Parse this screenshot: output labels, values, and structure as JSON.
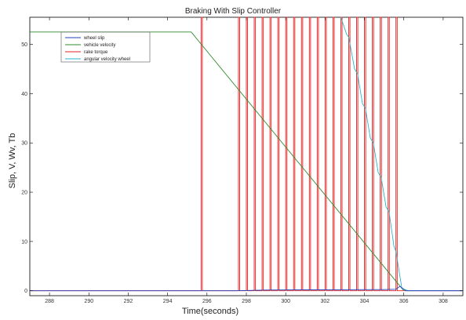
{
  "chart_data": {
    "type": "line",
    "title": "Braking With Slip Controller",
    "xlabel": "Time(seconds)",
    "ylabel": "Slip, V, Wv, Tb",
    "xlim": [
      287,
      309
    ],
    "ylim": [
      -1,
      55.5
    ],
    "xticks": [
      288,
      290,
      292,
      294,
      296,
      298,
      300,
      302,
      304,
      306,
      308
    ],
    "yticks": [
      0,
      10,
      20,
      30,
      40,
      50
    ],
    "grid": false,
    "legend_position": "top-left",
    "series": [
      {
        "name": "wheel slip",
        "color": "#1f3fbf",
        "x": [
          287,
          297.5,
          299,
          302,
          305,
          305.6,
          305.8,
          306.1,
          309
        ],
        "y": [
          0,
          0,
          0.15,
          0.2,
          0.25,
          0.3,
          0.9,
          0,
          0
        ]
      },
      {
        "name": "vehicle velocity",
        "color": "#2e8b2e",
        "x": [
          287,
          295.2,
          306
        ],
        "y": [
          52.5,
          52.5,
          0
        ]
      },
      {
        "name": "rake torque",
        "color": "#e02020",
        "baseline": 0,
        "peak": 60,
        "pulse_times": [
          295.7,
          297.6,
          298.0,
          298.4,
          298.8,
          299.2,
          299.6,
          300.0,
          300.4,
          300.8,
          301.2,
          301.6,
          302.0,
          302.4,
          302.8,
          303.2,
          303.6,
          304.0,
          304.4,
          304.8,
          305.2,
          305.6
        ]
      },
      {
        "name": "angular velocity   wheel",
        "color": "#2ab5c8",
        "x": [
          302.8,
          303.1,
          303.2,
          303.5,
          303.65,
          303.9,
          304.05,
          304.3,
          304.45,
          304.7,
          304.85,
          305.1,
          305.25,
          305.5,
          305.6,
          305.9,
          306.2,
          309
        ],
        "y": [
          56,
          52,
          51.5,
          45,
          44,
          38,
          37,
          31,
          30,
          24,
          23,
          17,
          16,
          9,
          8,
          0.5,
          0,
          0
        ]
      }
    ]
  }
}
